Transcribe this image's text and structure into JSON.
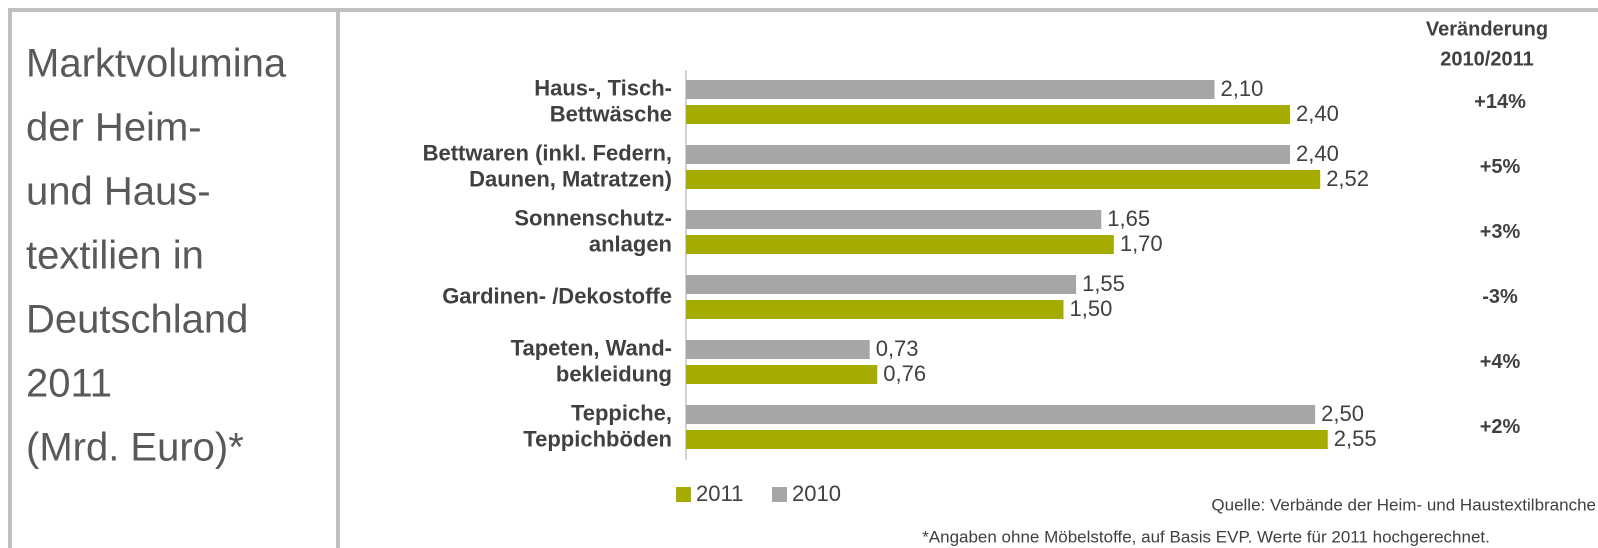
{
  "chart_data": {
    "type": "barh",
    "title": [
      "Marktvolumina",
      "der Heim-",
      "und Haus-",
      "textilien in",
      "Deutschland",
      "2011",
      "(Mrd. Euro)*"
    ],
    "categories": [
      [
        "Haus-, Tisch-",
        "Bettwäsche"
      ],
      [
        "Bettwaren (inkl. Federn,",
        "Daunen, Matratzen)"
      ],
      [
        "Sonnenschutz-",
        "anlagen"
      ],
      [
        "Gardinen- /Dekostoffe"
      ],
      [
        "Tapeten, Wand-",
        "bekleidung"
      ],
      [
        "Teppiche,",
        "Teppichböden"
      ]
    ],
    "series": [
      {
        "name": "2011",
        "color": "#a5ac00",
        "values": [
          2.4,
          2.52,
          1.7,
          1.5,
          0.76,
          2.55
        ],
        "value_labels": [
          "2,40",
          "2,52",
          "1,70",
          "1,50",
          "0,76",
          "2,55"
        ]
      },
      {
        "name": "2010",
        "color": "#a6a6a6",
        "values": [
          2.1,
          2.4,
          1.65,
          1.55,
          0.73,
          2.5
        ],
        "value_labels": [
          "2,10",
          "2,40",
          "1,65",
          "1,55",
          "0,73",
          "2,50"
        ]
      }
    ],
    "xlim": [
      0,
      3.6
    ],
    "change_header": [
      "Veränderung",
      "2010/2011"
    ],
    "change_labels": [
      "+14%",
      "+5%",
      "+3%",
      "-3%",
      "+4%",
      "+2%"
    ],
    "notes": [
      "Quelle: Verbände der Heim- und Haustextilbranche",
      "*Angaben ohne Möbelstoffe, auf Basis EVP.  Werte für 2011 hochgerechnet."
    ]
  }
}
